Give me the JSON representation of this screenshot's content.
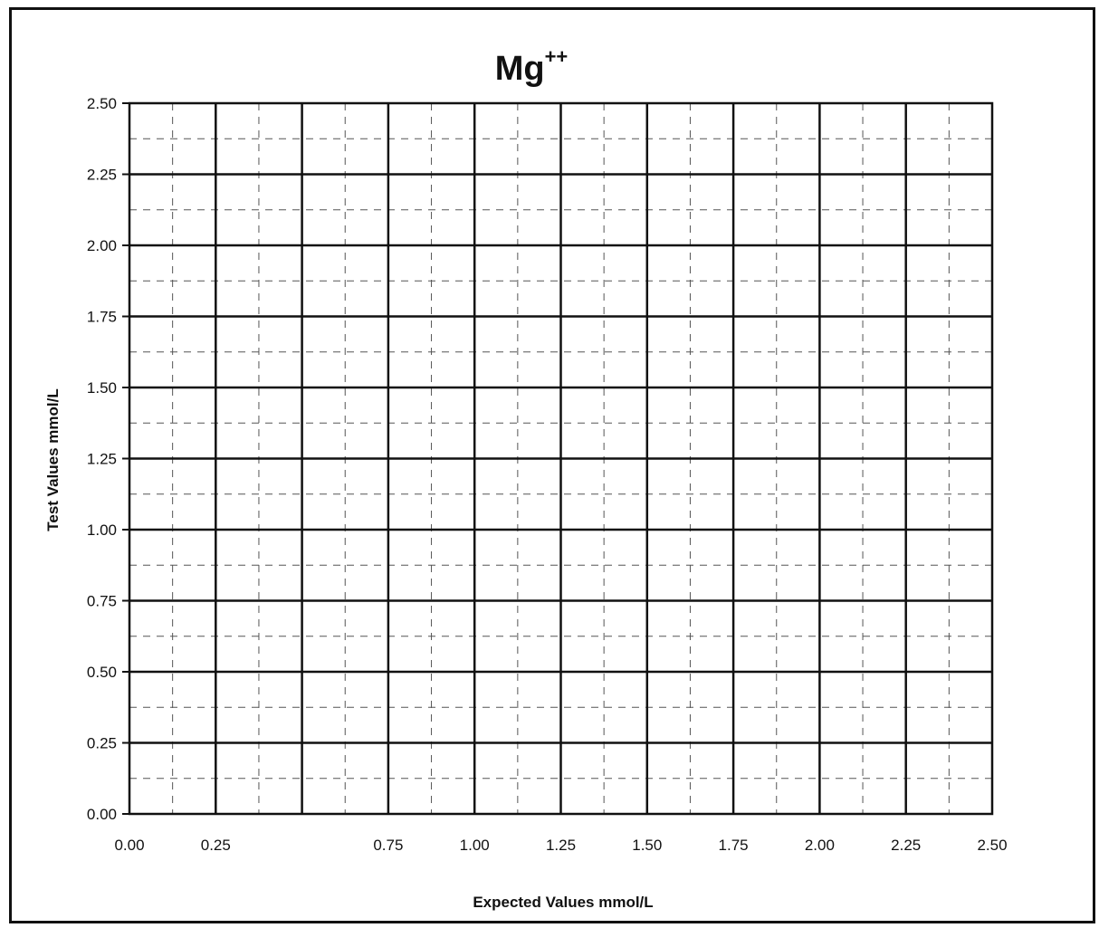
{
  "chart_data": {
    "type": "scatter",
    "title": "Mg",
    "title_superscript": "++",
    "xlabel": "Expected Values mmol/L",
    "ylabel": "Test Values mmol/L",
    "xlim": [
      0,
      2.5
    ],
    "ylim": [
      0,
      2.5
    ],
    "x_ticks": [
      "0.00",
      "0.25",
      "0.75",
      "1.00",
      "1.25",
      "1.50",
      "1.75",
      "2.00",
      "2.25",
      "2.50"
    ],
    "x_tick_values": [
      0,
      0.25,
      0.75,
      1.0,
      1.25,
      1.5,
      1.75,
      2.0,
      2.25,
      2.5
    ],
    "y_ticks": [
      "0.00",
      "0.25",
      "0.50",
      "0.75",
      "1.00",
      "1.25",
      "1.50",
      "1.75",
      "2.00",
      "2.25",
      "2.50"
    ],
    "y_tick_values": [
      0,
      0.25,
      0.5,
      0.75,
      1.0,
      1.25,
      1.5,
      1.75,
      2.0,
      2.25,
      2.5
    ],
    "grid": "on",
    "minor_grid": "dashed",
    "series": []
  }
}
